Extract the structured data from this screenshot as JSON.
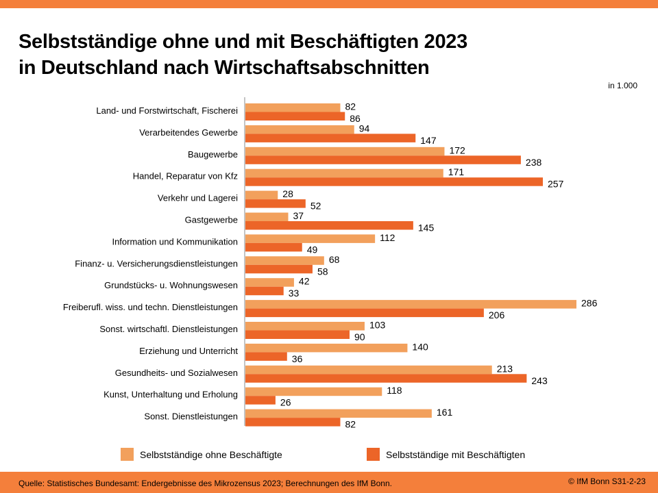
{
  "header": {
    "title_line1": "Selbstständige ohne und mit Beschäftigten 2023",
    "title_line2": "in Deutschland nach Wirtschaftsabschnitten",
    "unit": "in 1.000"
  },
  "footer": {
    "source": "Quelle: Statistisches Bundesamt: Endergebnisse des Mikrozensus 2023; Berechnungen des IfM Bonn.",
    "copyright": "© IfM Bonn  S31-2-23"
  },
  "colors": {
    "ohne": "#f2a05c",
    "mit": "#ec6528",
    "accent": "#f47f3b"
  },
  "chart_data": {
    "type": "bar",
    "orientation": "horizontal",
    "title": "Selbstständige ohne und mit Beschäftigten 2023 in Deutschland nach Wirtschaftsabschnitten",
    "unit": "in 1.000",
    "xlabel": "",
    "ylabel": "",
    "xlim": [
      0,
      286
    ],
    "legend_position": "bottom",
    "categories": [
      "Land- und Forstwirtschaft, Fischerei",
      "Verarbeitendes Gewerbe",
      "Baugewerbe",
      "Handel, Reparatur von Kfz",
      "Verkehr und Lagerei",
      "Gastgewerbe",
      "Information und Kommunikation",
      "Finanz- u. Versicherungsdienstleistungen",
      "Grundstücks- u. Wohnungswesen",
      "Freiberufl. wiss. und techn. Dienstleistungen",
      "Sonst. wirtschaftl. Dienstleistungen",
      "Erziehung und Unterricht",
      "Gesundheits- und Sozialwesen",
      "Kunst, Unterhaltung und Erholung",
      "Sonst. Dienstleistungen"
    ],
    "series": [
      {
        "name": "Selbstständige ohne Beschäftigte",
        "values": [
          82,
          94,
          172,
          171,
          28,
          37,
          112,
          68,
          42,
          286,
          103,
          140,
          213,
          118,
          161
        ]
      },
      {
        "name": "Selbstständige mit Beschäftigten",
        "values": [
          86,
          147,
          238,
          257,
          52,
          145,
          49,
          58,
          33,
          206,
          90,
          36,
          243,
          26,
          82
        ]
      }
    ]
  }
}
